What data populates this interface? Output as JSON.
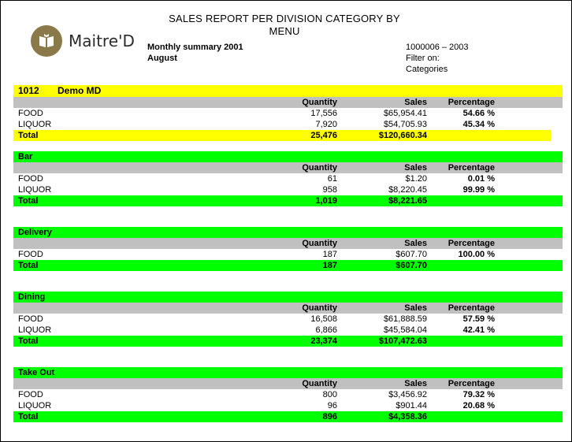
{
  "header": {
    "logo_text": "Maitre'D",
    "title_line1": "SALES REPORT PER DIVISION CATEGORY BY",
    "title_line2": "MENU",
    "subtitle_line1": "Monthly summary 2001",
    "subtitle_line2": "August",
    "meta_line1": "1000006 – 2003",
    "meta_line2": "Filter on:",
    "meta_line3": "Categories"
  },
  "columns": {
    "quantity": "Quantity",
    "sales": "Sales",
    "percentage": "Percentage"
  },
  "colors": {
    "yellow": "#ffff00",
    "green": "#00ff00",
    "header_gray": "#c0c0c0",
    "logo": "#8a7a4a"
  },
  "sections": [
    {
      "code": "1012",
      "title": "Demo MD",
      "rows": [
        {
          "category": "FOOD",
          "quantity": "17,556",
          "sales": "$65,954.41",
          "percentage": "54.66 %"
        },
        {
          "category": "LIQUOR",
          "quantity": "7,920",
          "sales": "$54,705.93",
          "percentage": "45.34 %"
        }
      ],
      "total": {
        "label": "Total",
        "quantity": "25,476",
        "sales": "$120,660.34"
      }
    },
    {
      "title": "Bar",
      "rows": [
        {
          "category": "FOOD",
          "quantity": "61",
          "sales": "$1.20",
          "percentage": "0.01 %"
        },
        {
          "category": "LIQUOR",
          "quantity": "958",
          "sales": "$8,220.45",
          "percentage": "99.99 %"
        }
      ],
      "total": {
        "label": "Total",
        "quantity": "1,019",
        "sales": "$8,221.65"
      }
    },
    {
      "title": "Delivery",
      "rows": [
        {
          "category": "FOOD",
          "quantity": "187",
          "sales": "$607.70",
          "percentage": "100.00 %"
        }
      ],
      "total": {
        "label": "Total",
        "quantity": "187",
        "sales": "$607.70"
      }
    },
    {
      "title": "Dining",
      "rows": [
        {
          "category": "FOOD",
          "quantity": "16,508",
          "sales": "$61,888.59",
          "percentage": "57.59 %"
        },
        {
          "category": "LIQUOR",
          "quantity": "6,866",
          "sales": "$45,584.04",
          "percentage": "42.41 %"
        }
      ],
      "total": {
        "label": "Total",
        "quantity": "23,374",
        "sales": "$107,472.63"
      }
    },
    {
      "title": "Take Out",
      "rows": [
        {
          "category": "FOOD",
          "quantity": "800",
          "sales": "$3,456.92",
          "percentage": "79.32 %"
        },
        {
          "category": "LIQUOR",
          "quantity": "96",
          "sales": "$901.44",
          "percentage": "20.68 %"
        }
      ],
      "total": {
        "label": "Total",
        "quantity": "896",
        "sales": "$4,358.36"
      }
    }
  ]
}
